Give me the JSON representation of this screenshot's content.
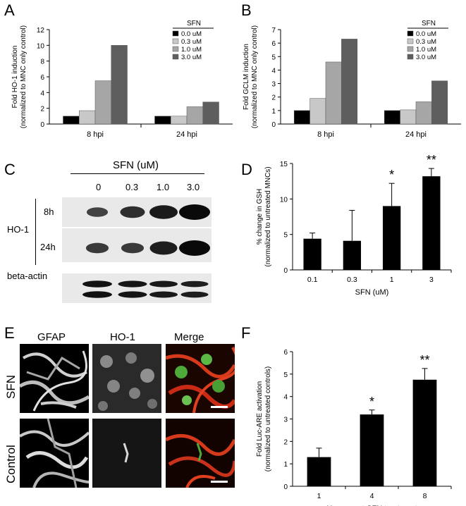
{
  "panels": {
    "A": "A",
    "B": "B",
    "C": "C",
    "D": "D",
    "E": "E",
    "F": "F"
  },
  "chart_data": [
    {
      "id": "A",
      "type": "bar",
      "ylabel_line1": "Fold HO-1 induction",
      "ylabel_line2": "(normalized to MNC only control)",
      "categories": [
        "8 hpi",
        "24 hpi"
      ],
      "ylim": [
        0,
        12
      ],
      "yticks": [
        0,
        2,
        4,
        6,
        8,
        10,
        12
      ],
      "legend_title": "SFN",
      "series": [
        {
          "name": "0.0 uM",
          "color": "#000000",
          "values": [
            1.0,
            1.0
          ]
        },
        {
          "name": "0.3 uM",
          "color": "#c8c8c8",
          "values": [
            1.7,
            1.0
          ]
        },
        {
          "name": "1.0 uM",
          "color": "#a6a6a6",
          "values": [
            5.5,
            2.2
          ]
        },
        {
          "name": "3.0 uM",
          "color": "#5e5e5e",
          "values": [
            10.0,
            2.8
          ]
        }
      ]
    },
    {
      "id": "B",
      "type": "bar",
      "ylabel_line1": "Fold GCLM induction",
      "ylabel_line2": "(normalized to MNC only control)",
      "categories": [
        "8 hpi",
        "24 hpi"
      ],
      "ylim": [
        0,
        7
      ],
      "yticks": [
        0,
        1,
        2,
        3,
        4,
        5,
        6,
        7
      ],
      "legend_title": "SFN",
      "series": [
        {
          "name": "0.0 uM",
          "color": "#000000",
          "values": [
            1.0,
            1.0
          ]
        },
        {
          "name": "0.3 uM",
          "color": "#c8c8c8",
          "values": [
            1.9,
            1.05
          ]
        },
        {
          "name": "1.0 uM",
          "color": "#a6a6a6",
          "values": [
            4.6,
            1.65
          ]
        },
        {
          "name": "3.0 uM",
          "color": "#5e5e5e",
          "values": [
            6.3,
            3.2
          ]
        }
      ]
    },
    {
      "id": "D",
      "type": "bar",
      "ylabel_line1": "% change in GSH",
      "ylabel_line2": "(normalized to untreated MNCs)",
      "xlabel": "SFN (uM)",
      "categories": [
        "0.1",
        "0.3",
        "1",
        "3"
      ],
      "values": [
        4.4,
        4.1,
        9.0,
        13.2
      ],
      "errors": [
        0.8,
        4.3,
        3.2,
        1.1
      ],
      "significance": [
        "",
        "",
        "*",
        "**"
      ],
      "ylim": [
        0,
        15
      ],
      "yticks": [
        0,
        5,
        10,
        15
      ]
    },
    {
      "id": "F",
      "type": "bar",
      "ylabel_line1": "Fold Luc-ARE activation",
      "ylabel_line2": "(normalized to untreated controls)",
      "xlabel": "Hours post-SFN treatment",
      "categories": [
        "1",
        "4",
        "8"
      ],
      "values": [
        1.3,
        3.2,
        4.75
      ],
      "errors": [
        0.4,
        0.2,
        0.5
      ],
      "significance": [
        "",
        "*",
        "**"
      ],
      "ylim": [
        0,
        6
      ],
      "yticks": [
        0,
        1,
        2,
        3,
        4,
        5,
        6
      ]
    }
  ],
  "blot": {
    "title": "SFN (uM)",
    "doses": [
      "0",
      "0.3",
      "1.0",
      "3.0"
    ],
    "group_label": "HO-1",
    "row_8h": "8h",
    "row_24h": "24h",
    "actin_label": "beta-actin",
    "intensity_8h": [
      0.3,
      0.55,
      0.8,
      1.0
    ],
    "intensity_24h": [
      0.4,
      0.4,
      0.75,
      1.0
    ],
    "intensity_actin": [
      0.9,
      0.85,
      0.8,
      0.75
    ]
  },
  "micrographs": {
    "columns": [
      "GFAP",
      "HO-1",
      "Merge"
    ],
    "rows": [
      "SFN",
      "Control"
    ]
  }
}
